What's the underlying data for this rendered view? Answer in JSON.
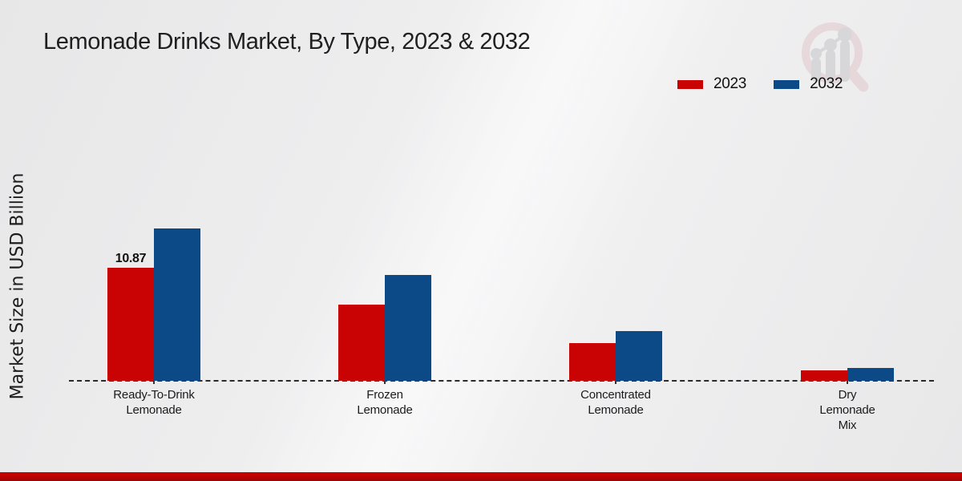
{
  "title": "Lemonade Drinks Market, By Type, 2023 & 2032",
  "ylabel": "Market Size in USD Billion",
  "legend": {
    "items": [
      {
        "label": "2023",
        "color": "#c90303"
      },
      {
        "label": "2032",
        "color": "#0c4a87"
      }
    ]
  },
  "watermark_icon": "magnifier-bar-chart-logo",
  "accent_colors": {
    "series_2023": "#c90303",
    "series_2032": "#0c4a87",
    "footer_bar": "#c90404",
    "background": "#ededee"
  },
  "chart_data": {
    "type": "bar",
    "title": "Lemonade Drinks Market, By Type, 2023 & 2032",
    "xlabel": "",
    "ylabel": "Market Size in USD Billion",
    "categories": [
      "Ready-To-Drink\nLemonade",
      "Frozen\nLemonade",
      "Concentrated\nLemonade",
      "Dry\nLemonade\nMix"
    ],
    "series": [
      {
        "name": "2023",
        "color": "#c90303",
        "values": [
          10.87,
          7.3,
          3.6,
          1.0
        ],
        "data_labels": [
          "10.87",
          "",
          "",
          ""
        ]
      },
      {
        "name": "2032",
        "color": "#0c4a87",
        "values": [
          14.65,
          10.2,
          4.8,
          1.2
        ],
        "data_labels": [
          "",
          "",
          "",
          ""
        ]
      }
    ],
    "ylim": [
      0,
      15
    ],
    "grid": false,
    "y_axis_ticks_visible": false,
    "baseline_style": "dashed",
    "legend_position": "top-right"
  }
}
